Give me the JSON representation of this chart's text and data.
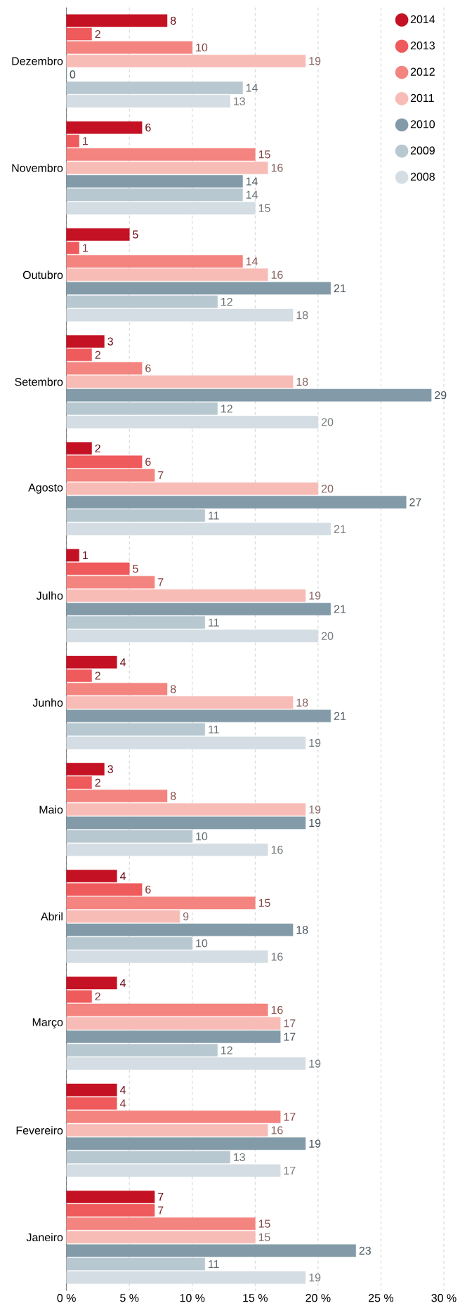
{
  "chart_data": {
    "type": "bar",
    "orientation": "horizontal",
    "categories": [
      "Dezembro",
      "Novembro",
      "Outubro",
      "Setembro",
      "Agosto",
      "Julho",
      "Junho",
      "Maio",
      "Abril",
      "Março",
      "Fevereiro",
      "Janeiro"
    ],
    "series": [
      {
        "name": "2014",
        "color": "#c41224",
        "values": [
          8,
          6,
          5,
          3,
          2,
          1,
          4,
          3,
          4,
          4,
          4,
          7
        ]
      },
      {
        "name": "2013",
        "color": "#ef5a5c",
        "values": [
          2,
          1,
          1,
          2,
          6,
          5,
          2,
          2,
          6,
          2,
          4,
          7
        ]
      },
      {
        "name": "2012",
        "color": "#f3847f",
        "values": [
          10,
          15,
          14,
          6,
          7,
          7,
          8,
          8,
          15,
          16,
          17,
          15
        ]
      },
      {
        "name": "2011",
        "color": "#f8bcb7",
        "values": [
          19,
          16,
          16,
          18,
          20,
          19,
          18,
          19,
          9,
          17,
          16,
          15
        ]
      },
      {
        "name": "2010",
        "color": "#839ba8",
        "values": [
          0,
          14,
          21,
          29,
          27,
          21,
          21,
          19,
          18,
          17,
          19,
          23
        ]
      },
      {
        "name": "2009",
        "color": "#b8c8d0",
        "values": [
          14,
          14,
          12,
          12,
          11,
          11,
          11,
          10,
          10,
          12,
          13,
          11
        ]
      },
      {
        "name": "2008",
        "color": "#d4dde3",
        "values": [
          13,
          15,
          18,
          20,
          21,
          20,
          19,
          16,
          16,
          19,
          17,
          19
        ]
      }
    ],
    "xlim": [
      0,
      30
    ],
    "xticks": [
      {
        "value": 0,
        "label": "0 %"
      },
      {
        "value": 5,
        "label": "5 %"
      },
      {
        "value": 10,
        "label": "10 %"
      },
      {
        "value": 15,
        "label": "15 %"
      },
      {
        "value": 20,
        "label": "20 %"
      },
      {
        "value": 25,
        "label": "25 %"
      },
      {
        "value": 30,
        "label": "30 %"
      }
    ],
    "grid": "x",
    "legend": "top right",
    "data_labels": true
  }
}
